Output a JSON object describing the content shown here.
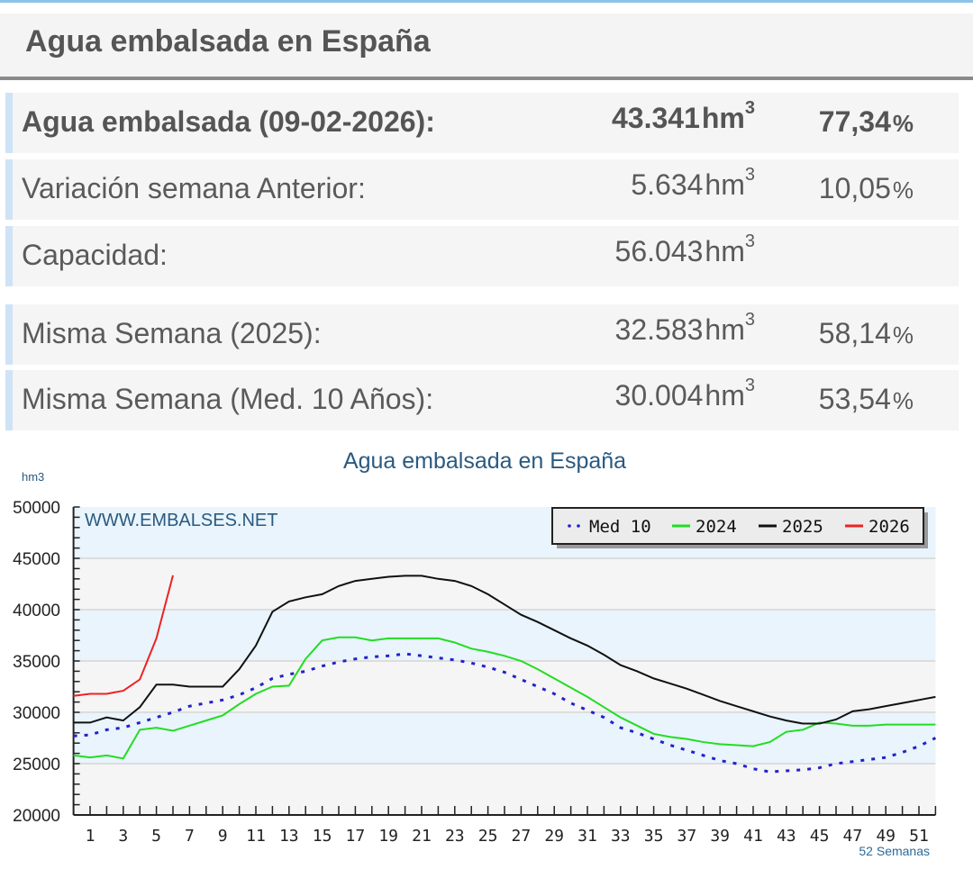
{
  "header": {
    "title": "Agua embalsada en España"
  },
  "rows": [
    {
      "label": "Agua embalsada (09-02-2026):",
      "value": "43.341",
      "unit": "hm",
      "exp": "3",
      "pct": "77,34",
      "pct_sign": "%"
    },
    {
      "label": "Variación semana Anterior:",
      "value": "5.634",
      "unit": "hm",
      "exp": "3",
      "pct": "10,05",
      "pct_sign": "%"
    },
    {
      "label": "Capacidad:",
      "value": "56.043",
      "unit": "hm",
      "exp": "3",
      "pct": "",
      "pct_sign": ""
    },
    {
      "label": "Misma Semana (2025):",
      "value": "32.583",
      "unit": "hm",
      "exp": "3",
      "pct": "58,14",
      "pct_sign": "%"
    },
    {
      "label": "Misma Semana (Med. 10 Años):",
      "value": "30.004",
      "unit": "hm",
      "exp": "3",
      "pct": "53,54",
      "pct_sign": "%"
    }
  ],
  "chart_data": {
    "type": "line",
    "title": "Agua embalsada en España",
    "ylabel": "hm3",
    "xlabel": "52 Semanas",
    "watermark": "WWW.EMBALSES.NET",
    "ylim": [
      20000,
      50000
    ],
    "xlim": [
      0,
      52
    ],
    "yticks": [
      20000,
      25000,
      30000,
      35000,
      40000,
      45000,
      50000
    ],
    "xticks": [
      1,
      3,
      5,
      7,
      9,
      11,
      13,
      15,
      17,
      19,
      21,
      23,
      25,
      27,
      29,
      31,
      33,
      35,
      37,
      39,
      41,
      43,
      45,
      47,
      49,
      51
    ],
    "legend_position": "top-right",
    "series": [
      {
        "name": "Med 10",
        "color": "#2222cc",
        "style": "dotted",
        "values": [
          27700,
          27800,
          28300,
          28500,
          29000,
          29500,
          30000,
          30600,
          30900,
          31200,
          31700,
          32400,
          33300,
          33700,
          34000,
          34500,
          34900,
          35200,
          35400,
          35500,
          35700,
          35500,
          35300,
          35100,
          34800,
          34400,
          33900,
          33200,
          32500,
          31800,
          30900,
          30200,
          29500,
          28500,
          28000,
          27400,
          26800,
          26300,
          25800,
          25300,
          25000,
          24500,
          24200,
          24300,
          24400,
          24600,
          25000,
          25200,
          25400,
          25600,
          26100,
          26700,
          27500
        ]
      },
      {
        "name": "2024",
        "color": "#22dd22",
        "style": "solid",
        "values": [
          25800,
          25600,
          25800,
          25500,
          28300,
          28500,
          28200,
          28700,
          29200,
          29700,
          30800,
          31800,
          32500,
          32600,
          35200,
          37000,
          37300,
          37300,
          37000,
          37200,
          37200,
          37200,
          37200,
          36800,
          36200,
          35900,
          35500,
          35000,
          34200,
          33300,
          32400,
          31500,
          30500,
          29500,
          28700,
          27900,
          27600,
          27400,
          27100,
          26900,
          26800,
          26700,
          27100,
          28100,
          28300,
          29000,
          28900,
          28700,
          28700,
          28800,
          28800,
          28800,
          28800
        ]
      },
      {
        "name": "2025",
        "color": "#111111",
        "style": "solid",
        "values": [
          29000,
          29000,
          29500,
          29200,
          30500,
          32700,
          32700,
          32500,
          32500,
          32500,
          34200,
          36500,
          39800,
          40800,
          41200,
          41500,
          42300,
          42800,
          43000,
          43200,
          43300,
          43300,
          43000,
          42800,
          42300,
          41500,
          40500,
          39500,
          38800,
          38000,
          37200,
          36500,
          35600,
          34600,
          34000,
          33300,
          32800,
          32300,
          31700,
          31100,
          30600,
          30100,
          29600,
          29200,
          28900,
          28900,
          29300,
          30100,
          30300,
          30600,
          30900,
          31200,
          31500
        ]
      },
      {
        "name": "2026",
        "color": "#ee2222",
        "style": "solid",
        "values": [
          31600,
          31800,
          31800,
          32100,
          33200,
          37200,
          43341
        ]
      }
    ]
  }
}
